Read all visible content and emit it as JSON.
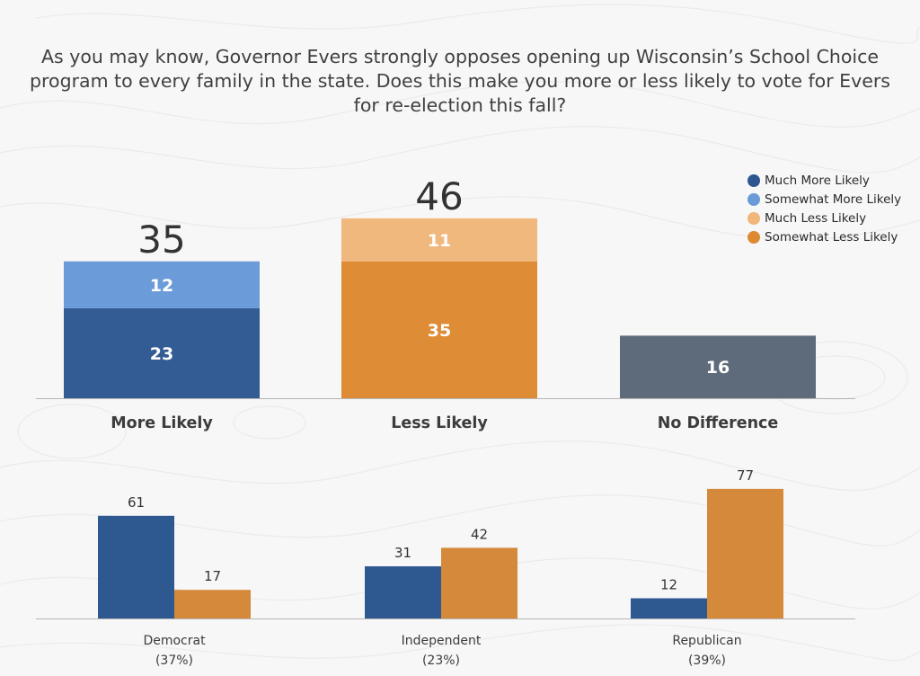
{
  "question": "As you may know, Governor Evers strongly opposes opening up Wisconsin’s School Choice program to every family in the state. Does this make you more or less likely to vote for Evers for re-election this fall?",
  "legend": [
    {
      "label": "Much More Likely",
      "color": "#2d5690"
    },
    {
      "label": "Somewhat More Likely",
      "color": "#6a9bd8"
    },
    {
      "label": "Much Less Likely",
      "color": "#f0b67a"
    },
    {
      "label": "Somewhat Less Likely",
      "color": "#de8a33"
    }
  ],
  "chart_data": [
    {
      "type": "bar",
      "stacked": true,
      "categories": [
        "More Likely",
        "Less Likely",
        "No Difference"
      ],
      "totals": [
        "35",
        "46",
        ""
      ],
      "ylim": [
        0,
        50
      ],
      "segments": [
        [
          {
            "label": "23",
            "value": 23,
            "color": "#335c94"
          },
          {
            "label": "12",
            "value": 12,
            "color": "#6b9bd8"
          }
        ],
        [
          {
            "label": "35",
            "value": 35,
            "color": "#de8c35"
          },
          {
            "label": "11",
            "value": 11,
            "color": "#f0b87d"
          }
        ],
        [
          {
            "label": "16",
            "value": 16,
            "color": "#5e6b7b"
          }
        ]
      ]
    },
    {
      "type": "bar",
      "categories": [
        "Democrat",
        "Independent",
        "Republican"
      ],
      "sublabels": [
        "(37%)",
        "(23%)",
        "(39%)"
      ],
      "series": [
        {
          "values": [
            61,
            31,
            12
          ],
          "color": "#2e5890"
        },
        {
          "values": [
            17,
            42,
            77
          ],
          "color": "#d5893a"
        }
      ],
      "ylim": [
        0,
        80
      ]
    }
  ]
}
